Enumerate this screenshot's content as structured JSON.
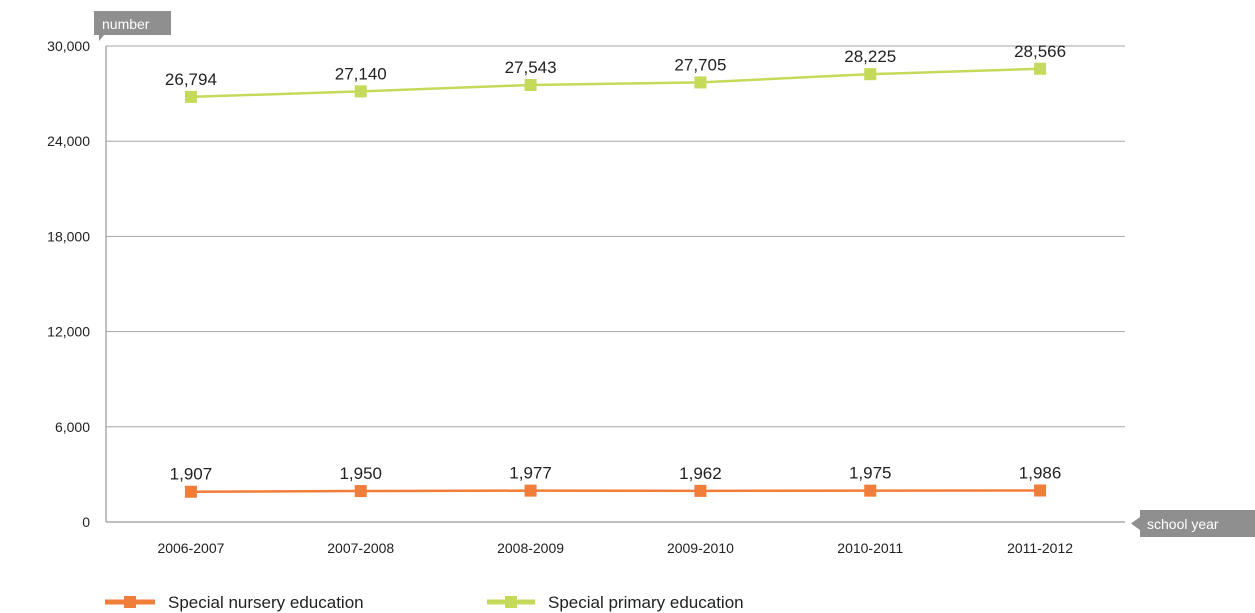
{
  "chart_data": {
    "type": "line",
    "ylabel": "number",
    "xlabel": "school year",
    "categories": [
      "2006-2007",
      "2007-2008",
      "2008-2009",
      "2009-2010",
      "2010-2011",
      "2011-2012"
    ],
    "ylim": [
      0,
      30000
    ],
    "yticks": [
      "0",
      "6,000",
      "12,000",
      "18,000",
      "24,000",
      "30,000"
    ],
    "ytick_values": [
      0,
      6000,
      12000,
      18000,
      24000,
      30000
    ],
    "grid": true,
    "legend_position": "bottom-left",
    "series": [
      {
        "name": "Special nursery education",
        "color": "#f07d3a",
        "marker": "square",
        "values": [
          1907,
          1950,
          1977,
          1962,
          1975,
          1986
        ],
        "labels": [
          "1,907",
          "1,950",
          "1,977",
          "1,962",
          "1,975",
          "1,986"
        ]
      },
      {
        "name": "Special primary education",
        "color": "#c5d95a",
        "marker": "square",
        "values": [
          26794,
          27140,
          27543,
          27705,
          28225,
          28566
        ],
        "labels": [
          "26,794",
          "27,140",
          "27,543",
          "27,705",
          "28,225",
          "28,566"
        ]
      }
    ]
  },
  "colors": {
    "axis_tag_bg": "#8f8f8f",
    "grid": "#a6a6a6",
    "axis": "#808080"
  }
}
